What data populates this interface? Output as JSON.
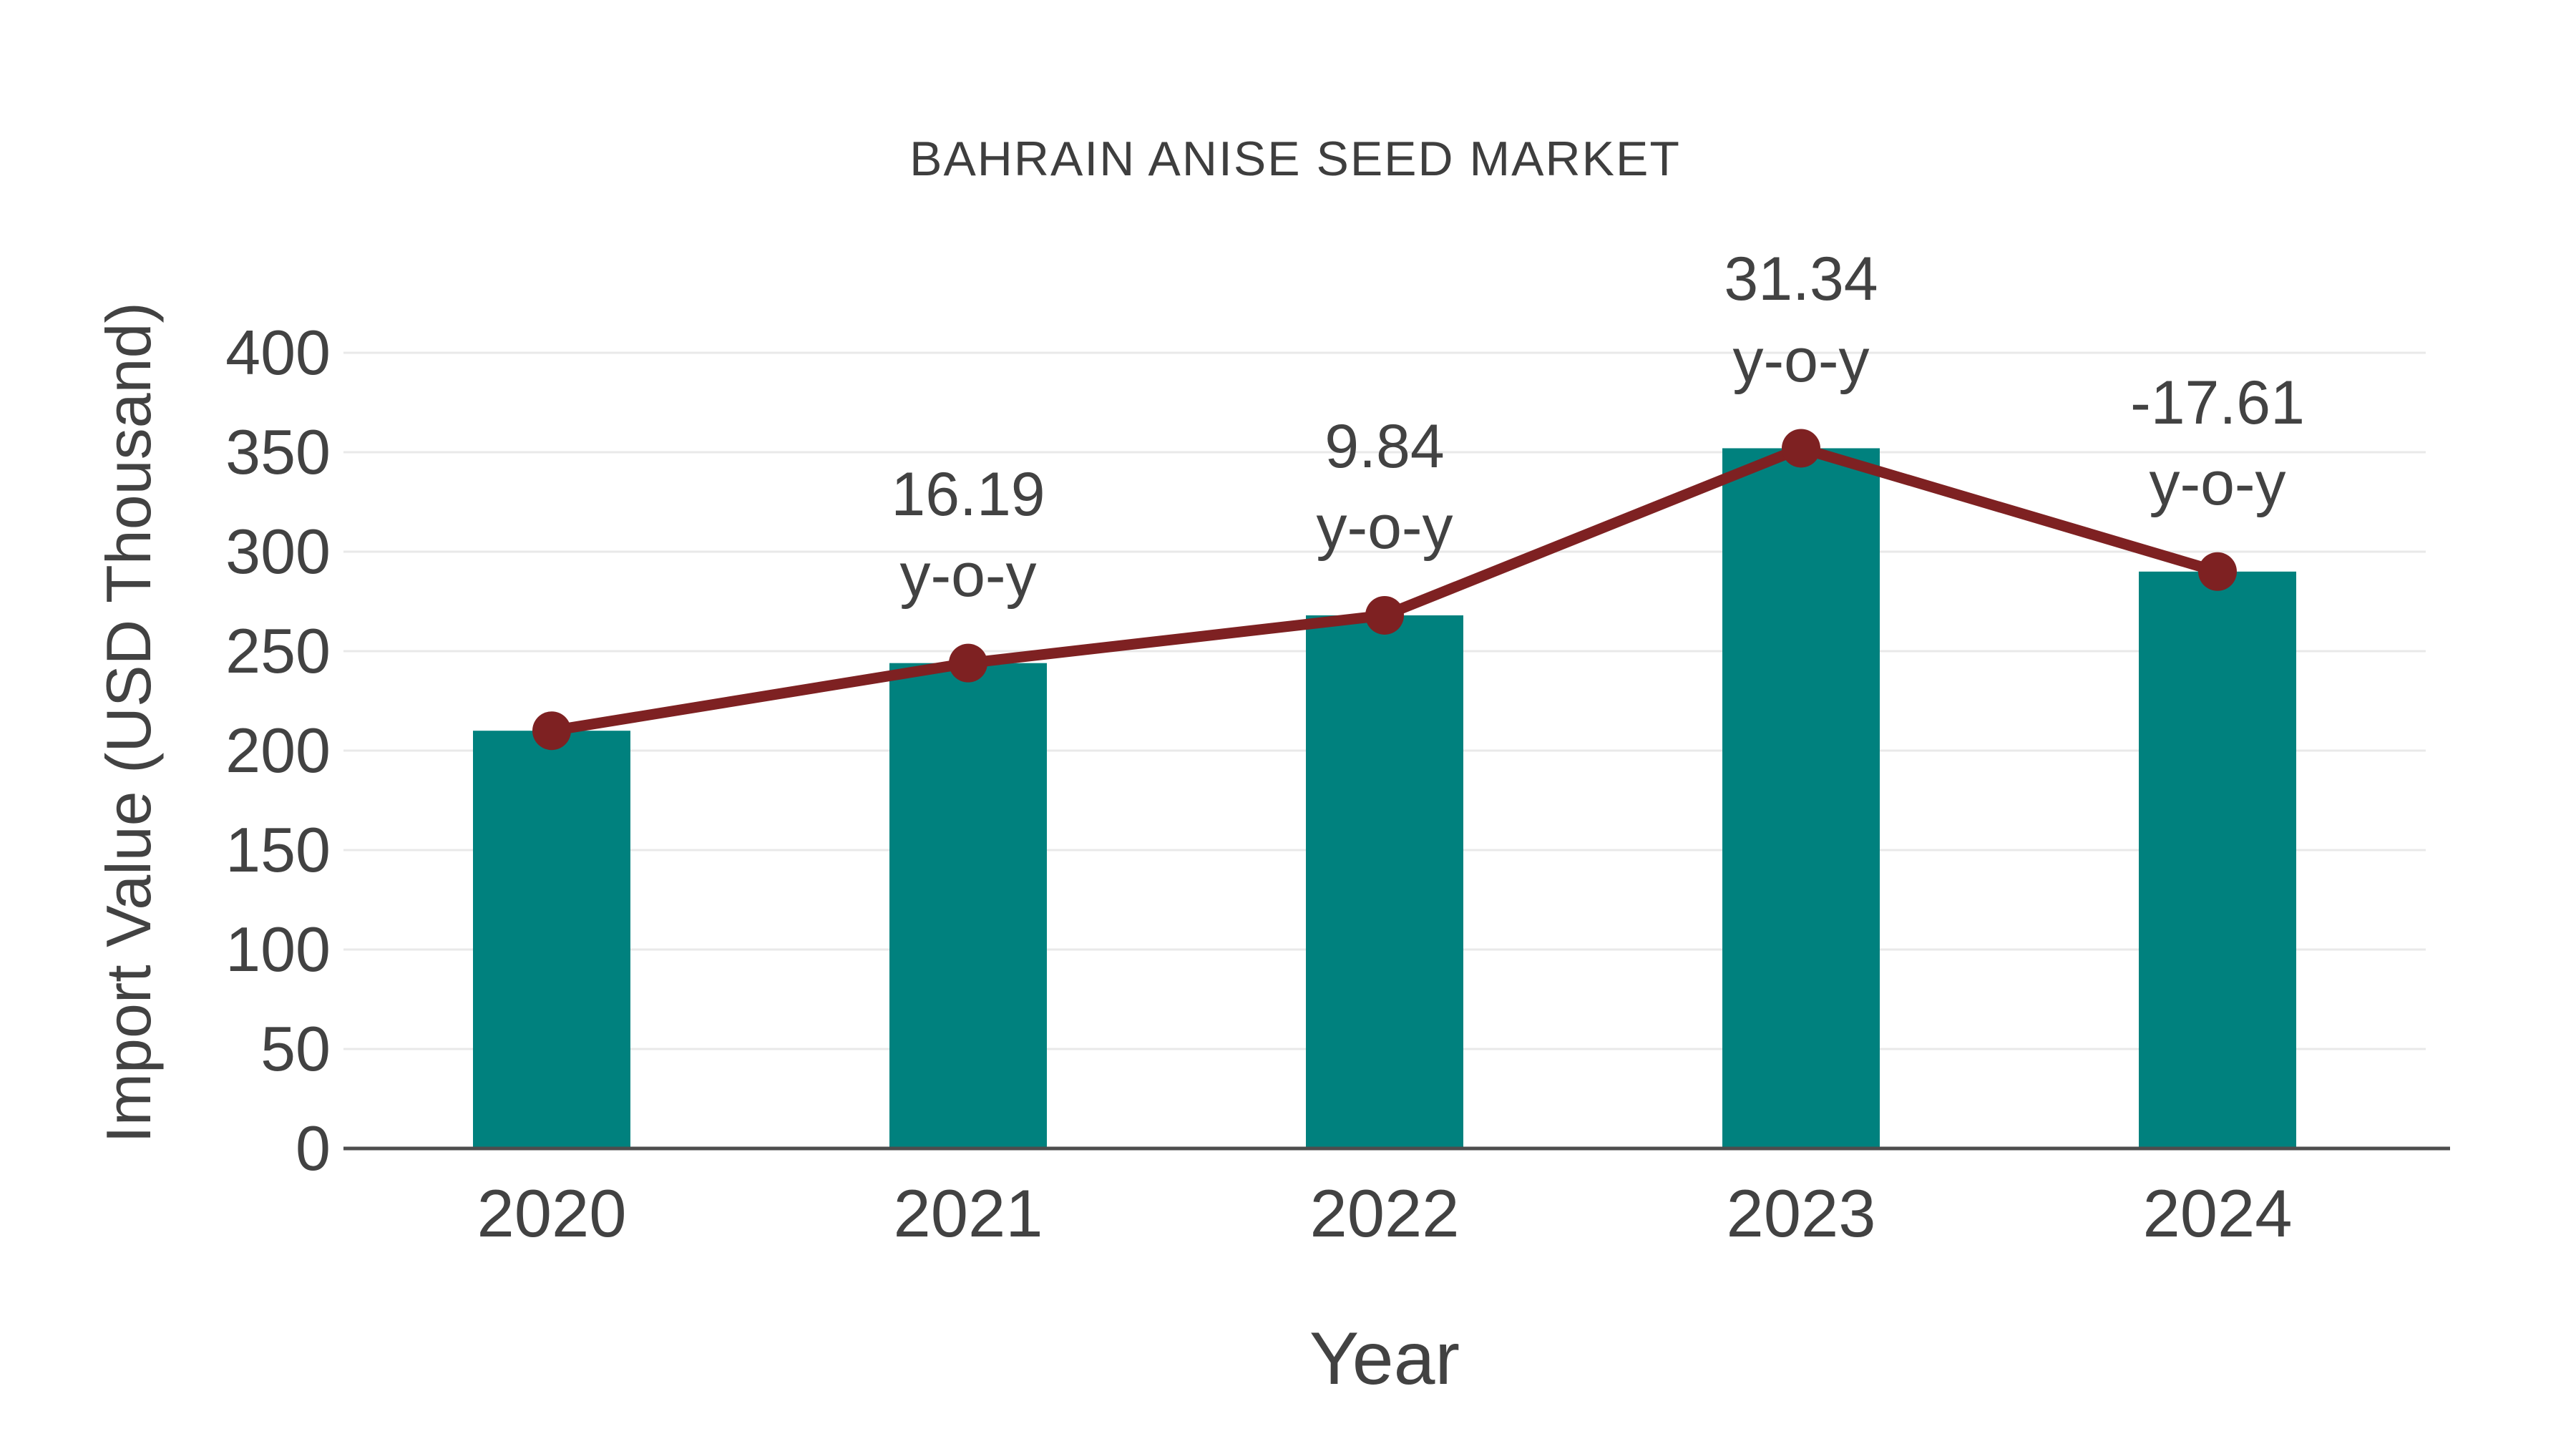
{
  "chart_data": {
    "type": "bar",
    "title": "BAHRAIN ANISE SEED MARKET",
    "xlabel": "Year",
    "ylabel": "Import Value (USD Thousand)",
    "categories": [
      "2020",
      "2021",
      "2022",
      "2023",
      "2024"
    ],
    "series": [
      {
        "name": "Import Value bars",
        "type": "bar",
        "color": "#00817e",
        "values": [
          210,
          244,
          268,
          352,
          290
        ]
      },
      {
        "name": "Import Value trend line",
        "type": "line",
        "color": "#7e2122",
        "values": [
          210,
          244,
          268,
          352,
          290
        ]
      }
    ],
    "annotations": [
      {
        "category": "2021",
        "line1": "16.19",
        "line2": "y-o-y"
      },
      {
        "category": "2022",
        "line1": "9.84",
        "line2": "y-o-y"
      },
      {
        "category": "2023",
        "line1": "31.34",
        "line2": "y-o-y"
      },
      {
        "category": "2024",
        "line1": "-17.61",
        "line2": "y-o-y"
      }
    ],
    "ylim": [
      0,
      400
    ],
    "yticks": [
      0,
      50,
      100,
      150,
      200,
      250,
      300,
      350,
      400
    ],
    "grid": true,
    "legend_position": "none"
  },
  "colors": {
    "bar": "#00817e",
    "line": "#7e2122",
    "text": "#424242",
    "gridline": "#e9e9e9",
    "axis": "#4d4d4d",
    "background": "#ffffff"
  }
}
